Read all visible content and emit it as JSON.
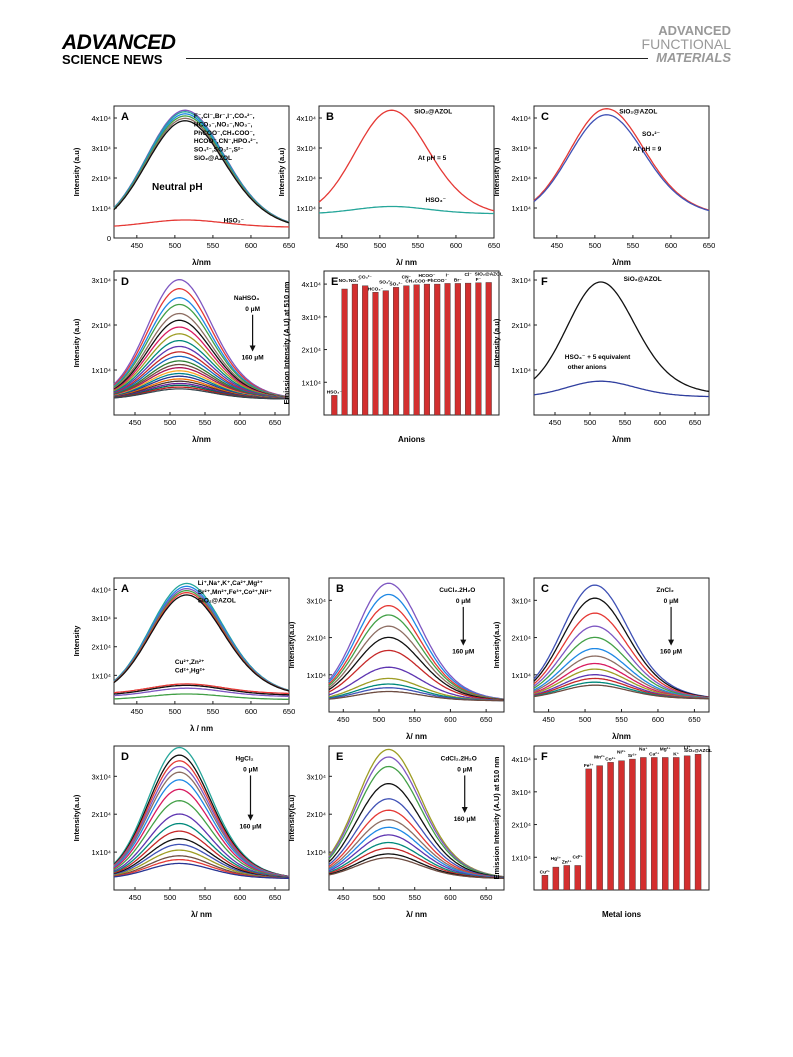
{
  "header": {
    "brand_line1": "ADVANCED",
    "brand_line2": "SCIENCE NEWS",
    "journal_line1": "ADVANCED",
    "journal_line2": "FUNCTIONAL",
    "journal_line3": "MATERIALS"
  },
  "chart_data": [
    {
      "figure": 1,
      "panel": "A",
      "type": "line",
      "xlabel": "λ/nm",
      "ylabel": "Intensity (a.u)",
      "xlim": [
        420,
        650
      ],
      "ylim": [
        0,
        44000.0
      ],
      "xticks": [
        450,
        500,
        550,
        600,
        650
      ],
      "yticks": [
        {
          "v": 0,
          "t": "0"
        },
        {
          "v": 10000.0,
          "t": "1x10⁴"
        },
        {
          "v": 20000.0,
          "t": "2x10⁴"
        },
        {
          "v": 30000.0,
          "t": "3x10⁴"
        },
        {
          "v": 40000.0,
          "t": "4x10⁴"
        }
      ],
      "peak_x": 510,
      "width": 48,
      "series": [
        {
          "color": "#7e57c2",
          "peak": 42500,
          "base": 2500
        },
        {
          "color": "#26a69a",
          "peak": 42000,
          "base": 2500
        },
        {
          "color": "#1e88e5",
          "peak": 41300,
          "base": 2500
        },
        {
          "color": "#43a047",
          "peak": 40600,
          "base": 2500
        },
        {
          "color": "#8d6e63",
          "peak": 39800,
          "base": 2500
        },
        {
          "color": "#111111",
          "peak": 39000,
          "base": 2500
        },
        {
          "color": "#e53935",
          "peak": 6000,
          "base": 3500
        }
      ],
      "annotations": [
        {
          "text": "F⁻,Cl⁻,Br⁻,I⁻,CO₃²⁻,",
          "x": 525,
          "y": 40000
        },
        {
          "text": "HCO₃⁻,NO₂⁻,NO₃⁻,",
          "x": 525,
          "y": 37200
        },
        {
          "text": "PhCOO⁻,CH₃COO⁻,",
          "x": 525,
          "y": 34400
        },
        {
          "text": "HCOO⁻,CN⁻,HPO₄²⁻,",
          "x": 525,
          "y": 31600
        },
        {
          "text": "SO₄²⁻,SO₃²⁻,S²⁻",
          "x": 525,
          "y": 28800
        },
        {
          "text": "SiO₂@AZOL",
          "x": 525,
          "y": 26000
        },
        {
          "text": "Neutral pH",
          "x": 470,
          "y": 16000,
          "size": 10
        },
        {
          "text": "HSO₃⁻",
          "x": 564,
          "y": 5200
        }
      ]
    },
    {
      "figure": 1,
      "panel": "B",
      "type": "line",
      "xlabel": "λ/ nm",
      "ylabel": "Intensity (a.u)",
      "xlim": [
        420,
        650
      ],
      "ylim": [
        0,
        44000.0
      ],
      "xticks": [
        450,
        500,
        550,
        600,
        650
      ],
      "yticks": [
        {
          "v": 10000.0,
          "t": "1x10⁴"
        },
        {
          "v": 20000.0,
          "t": "2x10⁴"
        },
        {
          "v": 30000.0,
          "t": "3x10⁴"
        },
        {
          "v": 40000.0,
          "t": "4x10⁴"
        }
      ],
      "peak_x": 512,
      "width": 45,
      "series": [
        {
          "color": "#e53935",
          "peak": 42500,
          "base": 7000
        },
        {
          "color": "#26a69a",
          "peak": 10500,
          "base": 8000
        }
      ],
      "annotations": [
        {
          "text": "SiO₂@AZOL",
          "x": 545,
          "y": 41500
        },
        {
          "text": "At pH = 5",
          "x": 550,
          "y": 26000
        },
        {
          "text": "HSO₃⁻",
          "x": 560,
          "y": 12000
        }
      ]
    },
    {
      "figure": 1,
      "panel": "C",
      "type": "line",
      "xlabel": "λ/nm",
      "ylabel": "Intensity (a.u)",
      "xlim": [
        420,
        650
      ],
      "ylim": [
        0,
        44000.0
      ],
      "xticks": [
        450,
        500,
        550,
        600,
        650
      ],
      "yticks": [
        {
          "v": 10000.0,
          "t": "1x10⁴"
        },
        {
          "v": 20000.0,
          "t": "2x10⁴"
        },
        {
          "v": 30000.0,
          "t": "3x10⁴"
        },
        {
          "v": 40000.0,
          "t": "4x10⁴"
        }
      ],
      "peak_x": 512,
      "width": 46,
      "series": [
        {
          "color": "#e53935",
          "peak": 43000,
          "base": 7000
        },
        {
          "color": "#3f51b5",
          "peak": 41000,
          "base": 7000
        }
      ],
      "annotations": [
        {
          "text": "SiO₂@AZOL",
          "x": 532,
          "y": 41500
        },
        {
          "text": "SO₃²⁻",
          "x": 562,
          "y": 34000
        },
        {
          "text": "At pH = 9",
          "x": 550,
          "y": 29000
        }
      ]
    },
    {
      "figure": 1,
      "panel": "D",
      "type": "line",
      "xlabel": "λ/nm",
      "ylabel": "Intensity (a.u)",
      "xlim": [
        420,
        670
      ],
      "ylim": [
        0,
        32000.0
      ],
      "xticks": [
        450,
        500,
        550,
        600,
        650
      ],
      "yticks": [
        {
          "v": 10000.0,
          "t": "1x10⁴"
        },
        {
          "v": 20000.0,
          "t": "2x10⁴"
        },
        {
          "v": 30000.0,
          "t": "3x10⁴"
        }
      ],
      "peak_x": 510,
      "width": 43,
      "base": 3500,
      "peaks": [
        30000,
        28000,
        26000,
        24500,
        22500,
        21000,
        19500,
        18000,
        16500,
        15200,
        14000,
        13000,
        12000,
        11200,
        10500,
        9800,
        9200,
        8600,
        8000,
        7500,
        7000,
        6600,
        6200,
        5800
      ],
      "colors": [
        "#7e57c2",
        "#e53935",
        "#1e88e5",
        "#43a047",
        "#8d6e63",
        "#111111",
        "#d81b60",
        "#9e9d24",
        "#00897b",
        "#5e35b1",
        "#c62828",
        "#1565c0",
        "#2e7d32",
        "#6d4c41",
        "#ad1457",
        "#f9a825",
        "#00838f",
        "#283593",
        "#ef6c00",
        "#4e342e",
        "#6a1b9a",
        "#00695c",
        "#b71c1c",
        "#37474f"
      ],
      "labels": {
        "reagent": "NaHSO₃",
        "start": "0 μM",
        "end": "160 μM"
      },
      "arrow_x": 618,
      "arrow_y1": 22500,
      "arrow_y2": 13000
    },
    {
      "figure": 1,
      "panel": "E",
      "type": "bar",
      "xlabel": "Anions",
      "ylabel": "Emission Intensity (A.U) at 510 nm",
      "ylim": [
        0,
        44000.0
      ],
      "yticks": [
        {
          "v": 10000.0,
          "t": "1x10⁴"
        },
        {
          "v": 20000.0,
          "t": "2x10⁴"
        },
        {
          "v": 30000.0,
          "t": "3x10⁴"
        },
        {
          "v": 40000.0,
          "t": "4x10⁴"
        }
      ],
      "categories": [
        "HSO₃⁻",
        "NO₃⁻",
        "NO₂⁻",
        "CO₃²⁻",
        "HCO₃⁻",
        "SO₄²⁻",
        "SO₃²⁻",
        "CN⁻",
        "CH₃COO⁻",
        "HCOO⁻",
        "PhCOO⁻",
        "I⁻",
        "Br⁻",
        "Cl⁻",
        "F⁻",
        "SiO₂@AZOL"
      ],
      "values": [
        6000,
        38500,
        40000,
        39500,
        37500,
        38000,
        39000,
        39500,
        39800,
        40000,
        40000,
        40200,
        40200,
        40300,
        40400,
        40500
      ],
      "bar_color": "#d32f2f"
    },
    {
      "figure": 1,
      "panel": "F",
      "type": "line",
      "xlabel": "λ/nm",
      "ylabel": "Intensity (a.u)",
      "xlim": [
        420,
        670
      ],
      "ylim": [
        0,
        32000.0
      ],
      "xticks": [
        450,
        500,
        550,
        600,
        650
      ],
      "yticks": [
        {
          "v": 10000.0,
          "t": "1x10⁴"
        },
        {
          "v": 20000.0,
          "t": "2x10⁴"
        },
        {
          "v": 30000.0,
          "t": "3x10⁴"
        }
      ],
      "peak_x": 512,
      "width": 45,
      "series": [
        {
          "color": "#111111",
          "peak": 29500,
          "base": 4500
        },
        {
          "color": "#303f9f",
          "peak": 7500,
          "base": 4000
        }
      ],
      "annotations": [
        {
          "text": "SiO₂@AZOL",
          "x": 548,
          "y": 29800
        },
        {
          "text": "HSO₃⁻ + 5 equivalent",
          "x": 464,
          "y": 12500
        },
        {
          "text": "other anions",
          "x": 468,
          "y": 10200
        }
      ]
    },
    {
      "figure": 2,
      "panel": "A",
      "type": "line",
      "xlabel": "λ / nm",
      "ylabel": "Intensity",
      "xlim": [
        420,
        650
      ],
      "ylim": [
        0,
        44000.0
      ],
      "xticks": [
        450,
        500,
        550,
        600,
        650
      ],
      "yticks": [
        {
          "v": 10000.0,
          "t": "1x10⁴"
        },
        {
          "v": 20000.0,
          "t": "2x10⁴"
        },
        {
          "v": 30000.0,
          "t": "3x10⁴"
        },
        {
          "v": 40000.0,
          "t": "4x10⁴"
        }
      ],
      "peak_x": 512,
      "width": 45,
      "series": [
        {
          "color": "#26a69a",
          "peak": 42000,
          "base": 2500
        },
        {
          "color": "#1e88e5",
          "peak": 41000,
          "base": 2500
        },
        {
          "color": "#7e57c2",
          "peak": 40200,
          "base": 2500
        },
        {
          "color": "#43a047",
          "peak": 39500,
          "base": 2500
        },
        {
          "color": "#e53935",
          "peak": 38800,
          "base": 2500
        },
        {
          "color": "#111111",
          "peak": 38000,
          "base": 2500
        },
        {
          "color": "#e53935",
          "peak": 7000,
          "base": 3500
        },
        {
          "color": "#111111",
          "peak": 6500,
          "base": 3000
        },
        {
          "color": "#7e57c2",
          "peak": 5500,
          "base": 2500
        },
        {
          "color": "#43a047",
          "peak": 3500,
          "base": 1500
        }
      ],
      "annotations": [
        {
          "text": "Li⁺,Na⁺,K⁺,Ca²⁺,Mg²⁺",
          "x": 530,
          "y": 41500
        },
        {
          "text": "Sr²⁺,Mn²⁺,Fe³⁺,Co²⁺,Ni²⁺",
          "x": 530,
          "y": 38500
        },
        {
          "text": "SiO₂@AZOL",
          "x": 530,
          "y": 35500
        },
        {
          "text": "Cu²⁺,Zn²⁺",
          "x": 500,
          "y": 14000
        },
        {
          "text": "Cd²⁺,Hg²⁺",
          "x": 500,
          "y": 11000
        }
      ]
    },
    {
      "figure": 2,
      "panel": "B",
      "type": "line",
      "xlabel": "λ/ nm",
      "ylabel": "Intensity(a.u)",
      "xlim": [
        430,
        675
      ],
      "ylim": [
        0,
        36000.0
      ],
      "xticks": [
        450,
        500,
        550,
        600,
        650
      ],
      "yticks": [
        {
          "v": 10000.0,
          "t": "1x10⁴"
        },
        {
          "v": 20000.0,
          "t": "2x10⁴"
        },
        {
          "v": 30000.0,
          "t": "3x10⁴"
        }
      ],
      "peak_x": 510,
      "width": 42,
      "base": 3000,
      "peaks": [
        34500,
        31500,
        28500,
        26000,
        23000,
        20000,
        16500,
        12000,
        9000,
        7500,
        6500,
        5500
      ],
      "colors": [
        "#7e57c2",
        "#1e88e5",
        "#e53935",
        "#43a047",
        "#8d6e63",
        "#111111",
        "#c62828",
        "#5e35b1",
        "#9e9d24",
        "#00897b",
        "#3f51b5",
        "#6d4c41"
      ],
      "labels": {
        "reagent": "CuCl₂.2H₂O",
        "start": "0 μM",
        "end": "160 μM"
      },
      "arrow_x": 618,
      "arrow_y1": 28500,
      "arrow_y2": 16500
    },
    {
      "figure": 2,
      "panel": "C",
      "type": "line",
      "xlabel": "λ/nm",
      "ylabel": "Intensity(a.u)",
      "xlim": [
        430,
        670
      ],
      "ylim": [
        0,
        36000.0
      ],
      "xticks": [
        450,
        500,
        550,
        600,
        650
      ],
      "yticks": [
        {
          "v": 10000.0,
          "t": "1x10⁴"
        },
        {
          "v": 20000.0,
          "t": "2x10⁴"
        },
        {
          "v": 30000.0,
          "t": "3x10⁴"
        }
      ],
      "peak_x": 510,
      "width": 42,
      "base": 3500,
      "peaks": [
        34000,
        30500,
        26500,
        23000,
        20000,
        17000,
        15000,
        13000,
        11500,
        10000,
        9000,
        8000,
        7200
      ],
      "colors": [
        "#3f51b5",
        "#111111",
        "#e53935",
        "#7e57c2",
        "#43a047",
        "#1e88e5",
        "#8d6e63",
        "#d81b60",
        "#9e9d24",
        "#5e35b1",
        "#c62828",
        "#00897b",
        "#6d4c41"
      ],
      "labels": {
        "reagent": "ZnCl₂",
        "start": "0 μM",
        "end": "160 μM"
      },
      "arrow_x": 618,
      "arrow_y1": 28500,
      "arrow_y2": 16500
    },
    {
      "figure": 2,
      "panel": "D",
      "type": "line",
      "xlabel": "λ/ nm",
      "ylabel": "Intensity(a.u)",
      "xlim": [
        420,
        670
      ],
      "ylim": [
        0,
        38000.0
      ],
      "xticks": [
        450,
        500,
        550,
        600,
        650
      ],
      "yticks": [
        {
          "v": 10000.0,
          "t": "1x10⁴"
        },
        {
          "v": 20000.0,
          "t": "2x10⁴"
        },
        {
          "v": 30000.0,
          "t": "3x10⁴"
        }
      ],
      "peak_x": 510,
      "width": 42,
      "base": 3000,
      "peaks": [
        37500,
        35500,
        34000,
        32500,
        31000,
        29000,
        26500,
        23500,
        20000,
        17500,
        15500,
        13500,
        12000,
        10500,
        9000,
        8000,
        7000
      ],
      "colors": [
        "#26a69a",
        "#111111",
        "#e53935",
        "#7e57c2",
        "#8d6e63",
        "#1e88e5",
        "#d81b60",
        "#43a047",
        "#5e35b1",
        "#00897b",
        "#c62828",
        "#111111",
        "#3f51b5",
        "#9e9d24",
        "#6d4c41",
        "#e53935",
        "#283593"
      ],
      "labels": {
        "reagent": "HgCl₂",
        "start": "0 μM",
        "end": "160 μM"
      },
      "arrow_x": 615,
      "arrow_y1": 30500,
      "arrow_y2": 17000
    },
    {
      "figure": 2,
      "panel": "E",
      "type": "line",
      "xlabel": "λ/ nm",
      "ylabel": "Intensity(a.u)",
      "xlim": [
        430,
        675
      ],
      "ylim": [
        0,
        38000.0
      ],
      "xticks": [
        450,
        500,
        550,
        600,
        650
      ],
      "yticks": [
        {
          "v": 10000.0,
          "t": "1x10⁴"
        },
        {
          "v": 20000.0,
          "t": "2x10⁴"
        },
        {
          "v": 30000.0,
          "t": "3x10⁴"
        }
      ],
      "peak_x": 510,
      "width": 42,
      "base": 3000,
      "peaks": [
        37000,
        35000,
        32500,
        28000,
        24000,
        21000,
        18500,
        16500,
        14500,
        12500,
        11000,
        9500,
        8500
      ],
      "colors": [
        "#9e9d24",
        "#7e57c2",
        "#43a047",
        "#111111",
        "#3f51b5",
        "#e53935",
        "#8d6e63",
        "#1e88e5",
        "#5e35b1",
        "#00897b",
        "#c62828",
        "#111111",
        "#6d4c41"
      ],
      "labels": {
        "reagent": "CdCl₂.2H₂O",
        "start": "0 μM",
        "end": "160 μM"
      },
      "arrow_x": 620,
      "arrow_y1": 30500,
      "arrow_y2": 19000
    },
    {
      "figure": 2,
      "panel": "F",
      "type": "bar",
      "xlabel": "Metal ions",
      "ylabel": "Emission Intensity (A.U) at 510 nm",
      "ylim": [
        0,
        44000.0
      ],
      "yticks": [
        {
          "v": 10000.0,
          "t": "1x10⁴"
        },
        {
          "v": 20000.0,
          "t": "2x10⁴"
        },
        {
          "v": 30000.0,
          "t": "3x10⁴"
        },
        {
          "v": 40000.0,
          "t": "4x10⁴"
        }
      ],
      "categories": [
        "Cu²⁺",
        "Hg²⁺",
        "Zn²⁺",
        "Cd²⁺",
        "Fe³⁺",
        "Mn²⁺",
        "Co²⁺",
        "Ni²⁺",
        "Sr²⁺",
        "Na⁺",
        "Ca²⁺",
        "Mg²⁺",
        "K⁺",
        "Li⁺",
        "SiO₂@AZOL"
      ],
      "values": [
        4500,
        7000,
        7500,
        7500,
        37000,
        38000,
        39000,
        39500,
        40000,
        40500,
        40500,
        40500,
        40500,
        41000,
        41500
      ],
      "bar_color": "#d32f2f"
    }
  ]
}
